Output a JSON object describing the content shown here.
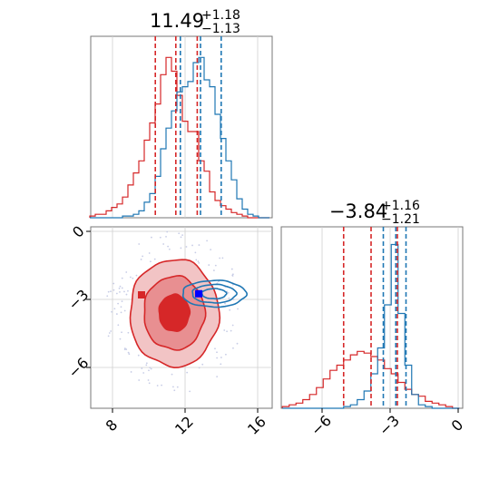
{
  "chart_data": [
    {
      "type": "histogram",
      "panel": "top-left",
      "title": {
        "value": "11.49",
        "plus": "+1.18",
        "minus": "−1.13"
      },
      "grid": true,
      "xlim": [
        6.8,
        16.8
      ],
      "series": [
        {
          "name": "",
          "color": "#d62728",
          "x": [
            6.9,
            7.2,
            7.5,
            7.8,
            8.1,
            8.4,
            8.7,
            9.0,
            9.3,
            9.6,
            9.9,
            10.2,
            10.5,
            10.8,
            11.1,
            11.4,
            11.7,
            12.0,
            12.3,
            12.6,
            12.9,
            13.2,
            13.5,
            13.8,
            14.1,
            14.4,
            14.7,
            15.0,
            15.3,
            15.6,
            15.9,
            16.2,
            16.5
          ],
          "y": [
            0.01,
            0.02,
            0.02,
            0.04,
            0.06,
            0.08,
            0.12,
            0.19,
            0.26,
            0.33,
            0.45,
            0.55,
            0.66,
            0.83,
            0.93,
            0.85,
            0.71,
            0.56,
            0.5,
            0.5,
            0.33,
            0.27,
            0.15,
            0.1,
            0.07,
            0.05,
            0.03,
            0.02,
            0.01,
            0.0,
            0.0,
            0.0,
            0.0
          ],
          "lines": [
            10.36,
            11.49,
            12.67
          ]
        },
        {
          "name": "",
          "color": "#1f77b4",
          "x": [
            6.9,
            7.2,
            7.5,
            7.8,
            8.1,
            8.4,
            8.7,
            9.0,
            9.3,
            9.6,
            9.9,
            10.2,
            10.5,
            10.8,
            11.1,
            11.4,
            11.7,
            12.0,
            12.3,
            12.6,
            12.9,
            13.2,
            13.5,
            13.8,
            14.1,
            14.4,
            14.7,
            15.0,
            15.3,
            15.6,
            15.9,
            16.2,
            16.5
          ],
          "y": [
            0.0,
            0.0,
            0.0,
            0.0,
            0.0,
            0.0,
            0.01,
            0.01,
            0.02,
            0.04,
            0.09,
            0.14,
            0.24,
            0.4,
            0.52,
            0.62,
            0.73,
            0.76,
            0.79,
            0.9,
            0.93,
            0.8,
            0.76,
            0.6,
            0.46,
            0.33,
            0.22,
            0.11,
            0.05,
            0.02,
            0.01,
            0.0,
            0.0
          ],
          "lines": [
            11.74,
            12.85,
            13.99
          ]
        }
      ]
    },
    {
      "type": "contour",
      "panel": "bottom-left",
      "grid": true,
      "xlim": [
        6.8,
        16.8
      ],
      "ylim": [
        -7.8,
        0.2
      ],
      "xticks": [
        "8",
        "12",
        "16"
      ],
      "yticks": [
        "0",
        "−3",
        "−6"
      ],
      "series": [
        {
          "name": "",
          "color": "#d62728",
          "center": [
            11.4,
            -3.6
          ],
          "sx": 1.4,
          "sy": 1.35,
          "levels": [
            0.6,
            1.2,
            1.75
          ],
          "fill": true
        },
        {
          "name": "",
          "color": "#1f77b4",
          "center": [
            13.6,
            -2.75
          ],
          "sx": 1.35,
          "sy": 0.45,
          "levels": [
            0.5,
            0.9,
            1.3
          ],
          "fill": false
        }
      ],
      "markers": [
        {
          "color": "#d62728",
          "x": 9.6,
          "y": -2.8
        },
        {
          "color": "#d62728",
          "x": 11.4,
          "y": -3.8
        },
        {
          "color": "#0000ff",
          "x": 12.75,
          "y": -2.75
        }
      ]
    },
    {
      "type": "histogram",
      "panel": "bottom-right",
      "title": {
        "value": "−3.84",
        "plus": "+1.16",
        "minus": "−1.21"
      },
      "grid": true,
      "xlim": [
        -7.8,
        0.2
      ],
      "xticks": [
        "−6",
        "−3",
        "0"
      ],
      "series": [
        {
          "name": "",
          "color": "#d62728",
          "x": [
            -7.6,
            -7.3,
            -7.0,
            -6.7,
            -6.4,
            -6.1,
            -5.8,
            -5.5,
            -5.2,
            -4.9,
            -4.6,
            -4.3,
            -4.0,
            -3.7,
            -3.4,
            -3.1,
            -2.8,
            -2.5,
            -2.2,
            -1.9,
            -1.6,
            -1.3,
            -1.0,
            -0.7,
            -0.4,
            -0.1
          ],
          "y": [
            0.01,
            0.02,
            0.03,
            0.05,
            0.08,
            0.12,
            0.17,
            0.22,
            0.25,
            0.28,
            0.31,
            0.33,
            0.32,
            0.3,
            0.28,
            0.23,
            0.2,
            0.15,
            0.11,
            0.08,
            0.07,
            0.04,
            0.03,
            0.02,
            0.01,
            0.0
          ],
          "lines": [
            -5.05,
            -3.84,
            -2.68
          ]
        },
        {
          "name": "",
          "color": "#1f77b4",
          "x": [
            -7.6,
            -7.3,
            -7.0,
            -6.7,
            -6.4,
            -6.1,
            -5.8,
            -5.5,
            -5.2,
            -4.9,
            -4.6,
            -4.3,
            -4.0,
            -3.7,
            -3.4,
            -3.1,
            -2.8,
            -2.5,
            -2.2,
            -1.9,
            -1.6,
            -1.3,
            -1.0,
            -0.7,
            -0.4,
            -0.1
          ],
          "y": [
            0.0,
            0.0,
            0.0,
            0.0,
            0.0,
            0.0,
            0.0,
            0.0,
            0.0,
            0.01,
            0.02,
            0.05,
            0.1,
            0.2,
            0.35,
            0.6,
            0.95,
            0.55,
            0.25,
            0.08,
            0.02,
            0.01,
            0.0,
            0.0,
            0.0,
            0.0
          ],
          "lines": [
            -3.3,
            -2.75,
            -2.3
          ]
        }
      ]
    }
  ]
}
